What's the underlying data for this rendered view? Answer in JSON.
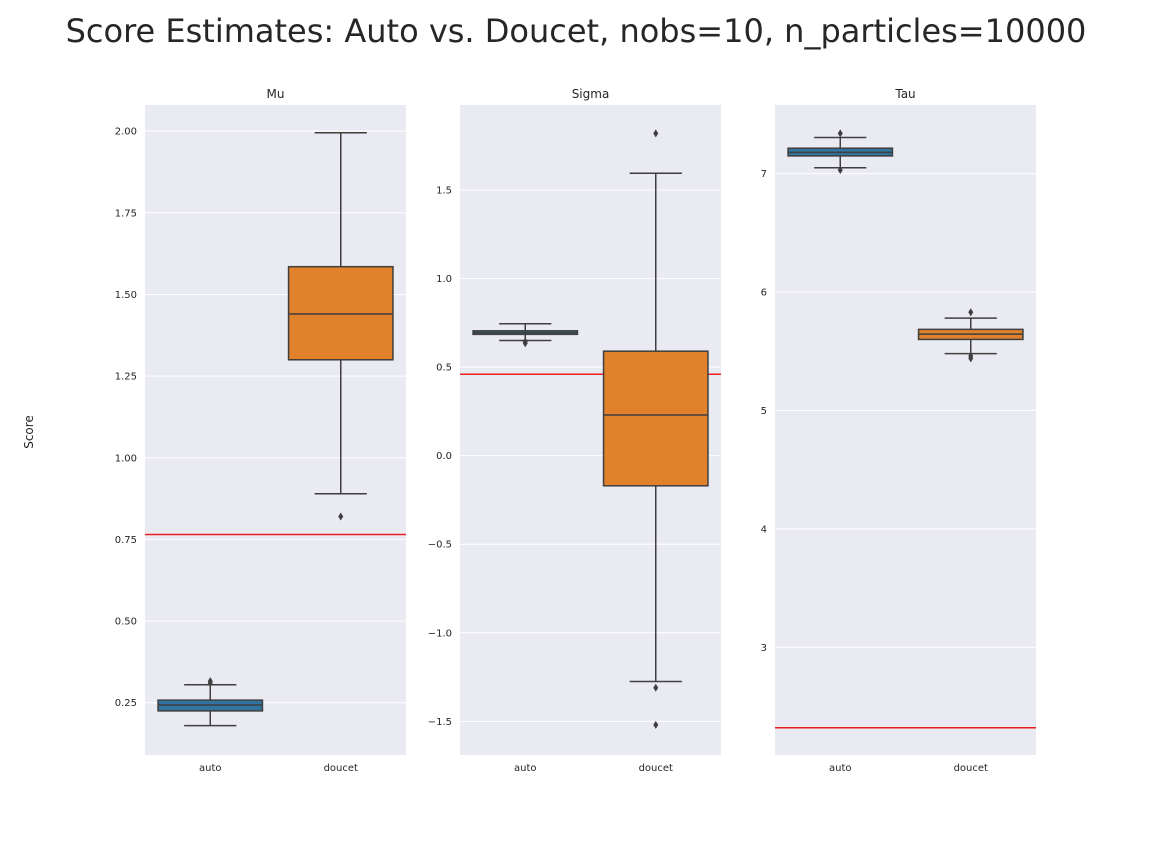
{
  "figure": {
    "title": "Score Estimates: Auto vs. Doucet, nobs=10, n_particles=10000",
    "ylabel": "Score"
  },
  "colors": {
    "background": "#eaeaf2",
    "grid": "#ffffff",
    "auto": "#3274a1",
    "doucet": "#e1812c",
    "reference_line": "#e8201f",
    "box_edge": "#3f3f3f"
  },
  "chart_data": [
    {
      "type": "box",
      "title": "Mu",
      "categories": [
        "auto",
        "doucet"
      ],
      "ylim": [
        0.09,
        2.08
      ],
      "yticks": [
        0.25,
        0.5,
        0.75,
        1.0,
        1.25,
        1.5,
        1.75,
        2.0
      ],
      "ytick_labels": [
        "0.25",
        "0.50",
        "0.75",
        "1.00",
        "1.25",
        "1.50",
        "1.75",
        "2.00"
      ],
      "grid": true,
      "reference_line": 0.765,
      "boxes": [
        {
          "name": "auto",
          "whislo": 0.18,
          "q1": 0.225,
          "med": 0.243,
          "q3": 0.258,
          "whishi": 0.305,
          "fliers": [
            0.31,
            0.316
          ]
        },
        {
          "name": "doucet",
          "whislo": 0.89,
          "q1": 1.3,
          "med": 1.44,
          "q3": 1.585,
          "whishi": 1.995,
          "fliers": [
            0.82
          ]
        }
      ]
    },
    {
      "type": "box",
      "title": "Sigma",
      "categories": [
        "auto",
        "doucet"
      ],
      "ylim": [
        -1.69,
        1.98
      ],
      "yticks": [
        -1.5,
        -1.0,
        -0.5,
        0.0,
        0.5,
        1.0,
        1.5
      ],
      "ytick_labels": [
        "−1.5",
        "−1.0",
        "−0.5",
        "0.0",
        "0.5",
        "1.0",
        "1.5"
      ],
      "grid": true,
      "reference_line": 0.46,
      "boxes": [
        {
          "name": "auto",
          "whislo": 0.65,
          "q1": 0.685,
          "med": 0.695,
          "q3": 0.705,
          "whishi": 0.745,
          "fliers": [
            0.635,
            0.645
          ]
        },
        {
          "name": "doucet",
          "whislo": -1.275,
          "q1": -0.17,
          "med": 0.23,
          "q3": 0.59,
          "whishi": 1.595,
          "fliers": [
            1.82,
            -1.31,
            -1.52
          ]
        }
      ]
    },
    {
      "type": "box",
      "title": "Tau",
      "categories": [
        "auto",
        "doucet"
      ],
      "ylim": [
        2.09,
        7.58
      ],
      "yticks": [
        3,
        4,
        5,
        6,
        7
      ],
      "ytick_labels": [
        "3",
        "4",
        "5",
        "6",
        "7"
      ],
      "grid": true,
      "reference_line": 2.32,
      "boxes": [
        {
          "name": "auto",
          "whislo": 7.05,
          "q1": 7.15,
          "med": 7.18,
          "q3": 7.215,
          "whishi": 7.305,
          "fliers": [
            7.34,
            7.03
          ]
        },
        {
          "name": "doucet",
          "whislo": 5.48,
          "q1": 5.6,
          "med": 5.645,
          "q3": 5.685,
          "whishi": 5.78,
          "fliers": [
            5.83,
            5.44,
            5.46
          ]
        }
      ]
    }
  ]
}
